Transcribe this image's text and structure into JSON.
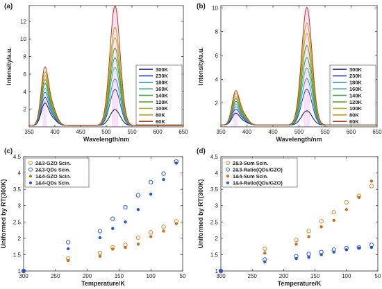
{
  "colors": {
    "axis": "#262626",
    "box": "#262626",
    "spectra_palette": [
      "#00008b",
      "#1f3fbf",
      "#3c8dbb",
      "#3ab098",
      "#35a043",
      "#4c9a22",
      "#b0b227",
      "#c79a1c",
      "#b63a15",
      "#a51818"
    ],
    "glow": "#e060e0",
    "open_orange": "#e08a2a",
    "open_blue": "#2a5fd8",
    "filled_orange": "#c8701a",
    "filled_blue": "#2a55c8"
  },
  "chart_data": [
    {
      "type": "line",
      "panel_label": "(a)",
      "xlabel": "Wavelength/nm",
      "ylabel": "Intensity/a.u.",
      "xlim": [
        350,
        650
      ],
      "ylim": [
        0,
        13.8
      ],
      "xticks": [
        "350",
        "400",
        "450",
        "500",
        "550",
        "600",
        "650"
      ],
      "yticks": [
        "2",
        "4",
        "6",
        "8",
        "10",
        "12"
      ],
      "legend_position": "right",
      "series": [
        {
          "name": "300K",
          "peak1": 2.3,
          "peak2": 1.8
        },
        {
          "name": "230K",
          "peak1": 2.9,
          "peak2": 4.1
        },
        {
          "name": "180K",
          "peak1": 3.4,
          "peak2": 5.3
        },
        {
          "name": "160K",
          "peak1": 3.8,
          "peak2": 6.6
        },
        {
          "name": "140K",
          "peak1": 4.3,
          "peak2": 7.7
        },
        {
          "name": "120K",
          "peak1": 4.7,
          "peak2": 8.8
        },
        {
          "name": "100K",
          "peak1": 5.1,
          "peak2": 10.0
        },
        {
          "name": "80K",
          "peak1": 5.5,
          "peak2": 11.2
        },
        {
          "name": "60K",
          "peak1": 6.0,
          "peak2": 13.6
        }
      ],
      "peak_positions_nm": [
        380,
        517
      ]
    },
    {
      "type": "line",
      "panel_label": "(b)",
      "xlabel": "Wavelength/nm",
      "ylabel": "Intensity/a.u.",
      "xlim": [
        350,
        650
      ],
      "ylim": [
        0,
        10.2
      ],
      "xticks": [
        "350",
        "400",
        "450",
        "500",
        "550",
        "600",
        "650"
      ],
      "yticks": [
        "2",
        "4",
        "6",
        "8",
        "10"
      ],
      "legend_position": "right",
      "series": [
        {
          "name": "300K",
          "peak1": 0.9,
          "peak2": 1.2
        },
        {
          "name": "230K",
          "peak1": 1.2,
          "peak2": 3.0
        },
        {
          "name": "180K",
          "peak1": 1.4,
          "peak2": 3.9
        },
        {
          "name": "160K",
          "peak1": 1.6,
          "peak2": 4.8
        },
        {
          "name": "140K",
          "peak1": 1.8,
          "peak2": 5.7
        },
        {
          "name": "120K",
          "peak1": 2.0,
          "peak2": 6.7
        },
        {
          "name": "100K",
          "peak1": 2.2,
          "peak2": 7.7
        },
        {
          "name": "80K",
          "peak1": 2.4,
          "peak2": 8.6
        },
        {
          "name": "60K",
          "peak1": 2.6,
          "peak2": 9.9
        }
      ],
      "peak_positions_nm": [
        378,
        515
      ]
    },
    {
      "type": "scatter",
      "panel_label": "(c)",
      "xlabel": "Temperature/K",
      "ylabel": "Uniformed by RT(300K)",
      "xlim": [
        300,
        50
      ],
      "ylim": [
        1,
        4.5
      ],
      "xticks": [
        "300",
        "250",
        "200",
        "150",
        "100",
        "50"
      ],
      "yticks": [
        "1",
        "1.5",
        "2",
        "2.5",
        "3",
        "3.5",
        "4",
        "4.5"
      ],
      "legend_position": "top-left",
      "x": [
        300,
        230,
        180,
        160,
        140,
        120,
        100,
        80,
        60
      ],
      "series": [
        {
          "name": "2&3-GZO Scin.",
          "marker": "open-circle",
          "color": "orange",
          "values": [
            1.0,
            1.38,
            1.55,
            1.72,
            1.8,
            2.02,
            2.18,
            2.35,
            2.52
          ]
        },
        {
          "name": "2&3-QDs Scin.",
          "marker": "open-circle",
          "color": "blue",
          "values": [
            1.0,
            1.88,
            2.22,
            2.6,
            2.95,
            3.32,
            3.72,
            3.98,
            4.35
          ]
        },
        {
          "name": "1&4-GZO Scin.",
          "marker": "filled-circle",
          "color": "orange",
          "values": [
            1.0,
            1.32,
            1.45,
            1.67,
            1.72,
            1.82,
            2.05,
            2.22,
            2.45
          ]
        },
        {
          "name": "1&4-QDs Scin.",
          "marker": "filled-circle",
          "color": "blue",
          "values": [
            1.0,
            1.68,
            2.02,
            2.3,
            2.5,
            2.88,
            3.35,
            3.8,
            4.3
          ]
        }
      ]
    },
    {
      "type": "scatter",
      "panel_label": "(d)",
      "xlabel": "Temperature/K",
      "ylabel": "Uniformed by RT(300K)",
      "xlim": [
        300,
        50
      ],
      "ylim": [
        1,
        4.5
      ],
      "xticks": [
        "300",
        "250",
        "200",
        "150",
        "100",
        "50"
      ],
      "yticks": [
        "1",
        "1.5",
        "2",
        "2.5",
        "3",
        "3.5",
        "4",
        "4.5"
      ],
      "legend_position": "top-left",
      "x": [
        300,
        230,
        180,
        160,
        140,
        120,
        100,
        80,
        60
      ],
      "series": [
        {
          "name": "2&3-Sum Scin.",
          "marker": "open-circle",
          "color": "orange",
          "values": [
            1.0,
            1.68,
            1.95,
            2.22,
            2.52,
            2.8,
            3.1,
            3.3,
            3.6
          ]
        },
        {
          "name": "2&3-Ratio(QDs/GZO)",
          "marker": "open-circle",
          "color": "blue",
          "values": [
            1.0,
            1.35,
            1.45,
            1.52,
            1.58,
            1.65,
            1.7,
            1.72,
            1.8
          ]
        },
        {
          "name": "1&4-Sum Scin.",
          "marker": "filled-circle",
          "color": "orange",
          "values": [
            1.0,
            1.55,
            1.82,
            2.05,
            2.35,
            2.55,
            2.88,
            3.25,
            3.75
          ]
        },
        {
          "name": "1&4-Ratio(QDs/GZO)",
          "marker": "filled-circle",
          "color": "blue",
          "values": [
            1.0,
            1.28,
            1.38,
            1.42,
            1.5,
            1.58,
            1.65,
            1.7,
            1.72
          ]
        }
      ]
    }
  ]
}
